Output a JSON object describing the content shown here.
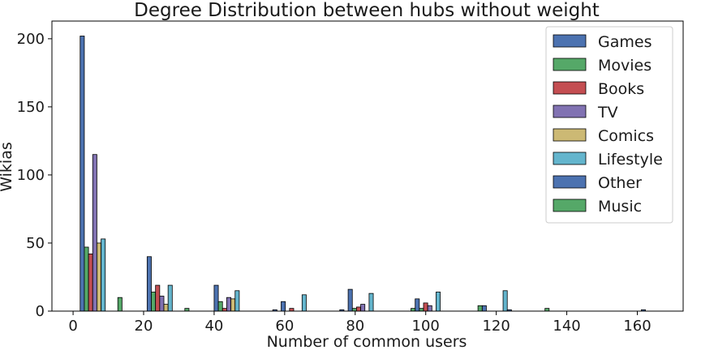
{
  "chart_data": {
    "type": "bar",
    "title": "Degree Distribution between hubs without weight",
    "xlabel": "Number of common users",
    "ylabel": "Wikias",
    "xlim": [
      -6,
      173
    ],
    "ylim": [
      0,
      213
    ],
    "xticks": [
      0,
      20,
      40,
      60,
      80,
      100,
      120,
      140,
      160
    ],
    "yticks": [
      0,
      50,
      100,
      150,
      200
    ],
    "bin_width": 9.5,
    "bin_starts": [
      2,
      11.5,
      21,
      30.5,
      40,
      49.5,
      59,
      68.5,
      78,
      87.5,
      97,
      106.5,
      116,
      125.5,
      135,
      144.5,
      154
    ],
    "legend_position": "top-right",
    "grid": false,
    "series": [
      {
        "name": "Games",
        "color": "#4c72b0",
        "values": [
          202,
          0,
          40,
          0,
          19,
          0,
          7,
          0,
          16,
          0,
          9,
          0,
          4,
          0,
          0,
          0,
          0
        ]
      },
      {
        "name": "Movies",
        "color": "#55a868",
        "values": [
          47,
          10,
          14,
          2,
          7,
          0,
          0,
          0,
          2,
          0,
          2,
          0,
          0,
          0,
          0,
          0,
          0
        ]
      },
      {
        "name": "Books",
        "color": "#c44e52",
        "values": [
          42,
          0,
          19,
          0,
          2,
          0,
          2,
          0,
          3,
          0,
          6,
          0,
          0,
          0,
          0,
          0,
          0
        ]
      },
      {
        "name": "TV",
        "color": "#8172b2",
        "values": [
          115,
          0,
          11,
          0,
          10,
          0,
          0,
          0,
          5,
          0,
          4,
          0,
          0,
          0,
          0,
          0,
          0
        ]
      },
      {
        "name": "Comics",
        "color": "#ccb974",
        "values": [
          50,
          0,
          5,
          0,
          9,
          0,
          0,
          0,
          0,
          0,
          0,
          0,
          0,
          0,
          0,
          0,
          0
        ]
      },
      {
        "name": "Lifestyle",
        "color": "#64b5cd",
        "values": [
          53,
          0,
          19,
          0,
          15,
          0,
          12,
          0,
          13,
          0,
          14,
          0,
          15,
          0,
          0,
          0,
          0
        ]
      },
      {
        "name": "Other",
        "color": "#4c72b0",
        "values": [
          0,
          0,
          0,
          0,
          0,
          1,
          0,
          1,
          0,
          0,
          0,
          0,
          1,
          0,
          0,
          0,
          1
        ]
      },
      {
        "name": "Music",
        "color": "#55a868",
        "values": [
          0,
          0,
          0,
          0,
          0,
          0,
          0,
          0,
          0,
          2,
          0,
          4,
          0,
          2,
          0,
          0,
          0
        ]
      }
    ]
  }
}
